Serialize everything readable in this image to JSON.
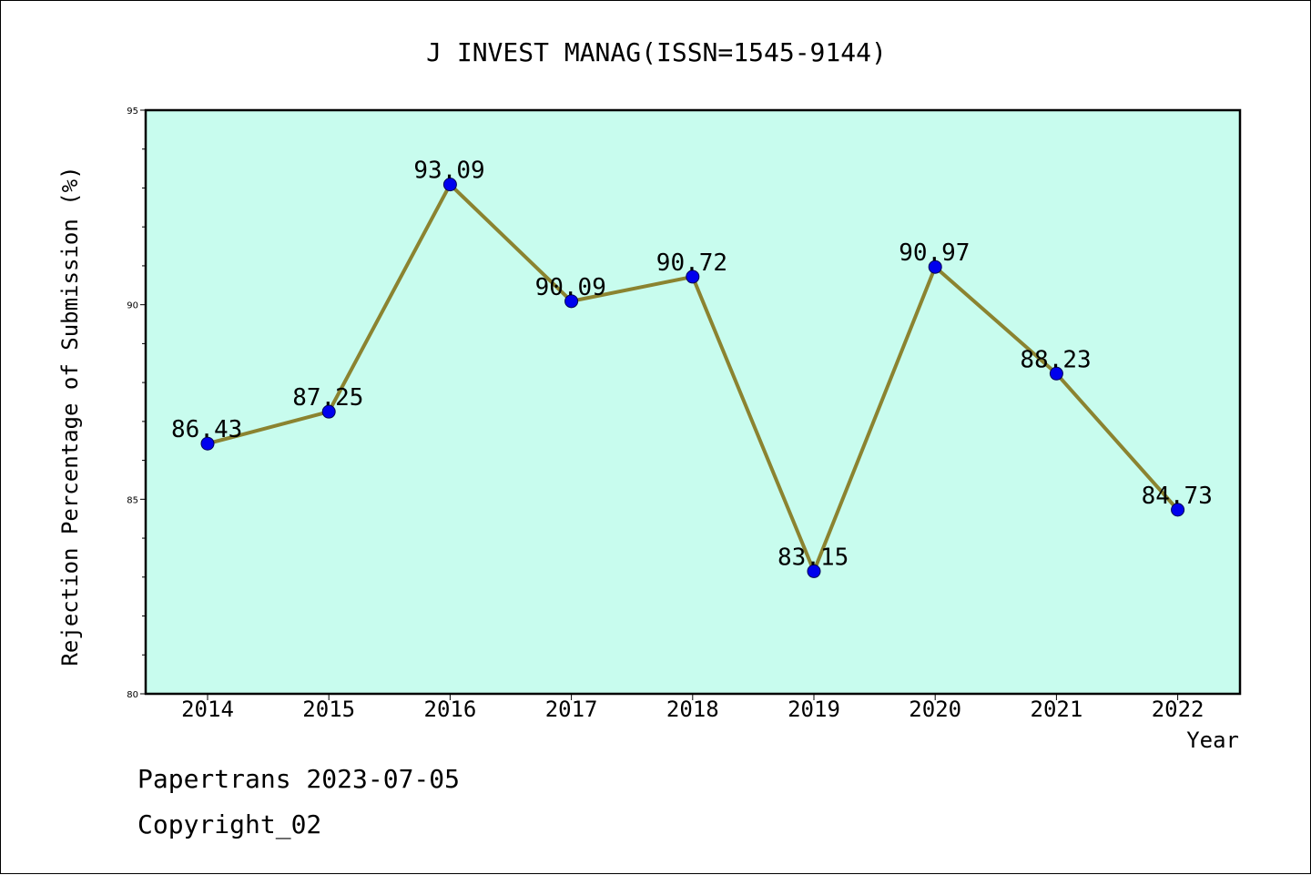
{
  "chart_data": {
    "type": "line",
    "title": "J INVEST MANAG(ISSN=1545-9144)",
    "xlabel": "Year",
    "ylabel": "Rejection Percentage of Submission (%)",
    "categories": [
      "2014",
      "2015",
      "2016",
      "2017",
      "2018",
      "2019",
      "2020",
      "2021",
      "2022"
    ],
    "series": [
      {
        "values": [
          86.43,
          87.25,
          93.09,
          90.09,
          90.72,
          83.15,
          90.97,
          88.23,
          84.73
        ],
        "labels": [
          "86.43",
          "87.25",
          "93.09",
          "90.09",
          "90.72",
          "83.15",
          "90.97",
          "88.23",
          "84.73"
        ]
      }
    ],
    "ylim": [
      80,
      95
    ],
    "yticks": [
      "80",
      "85",
      "90",
      "95"
    ],
    "grid": false,
    "legend": "none",
    "colors": {
      "plot_background": "#c8fcee",
      "line": "#8b8330",
      "marker": "#0000ee"
    }
  },
  "footer": {
    "line1": "Papertrans 2023-07-05",
    "line2": "Copyright_02"
  }
}
